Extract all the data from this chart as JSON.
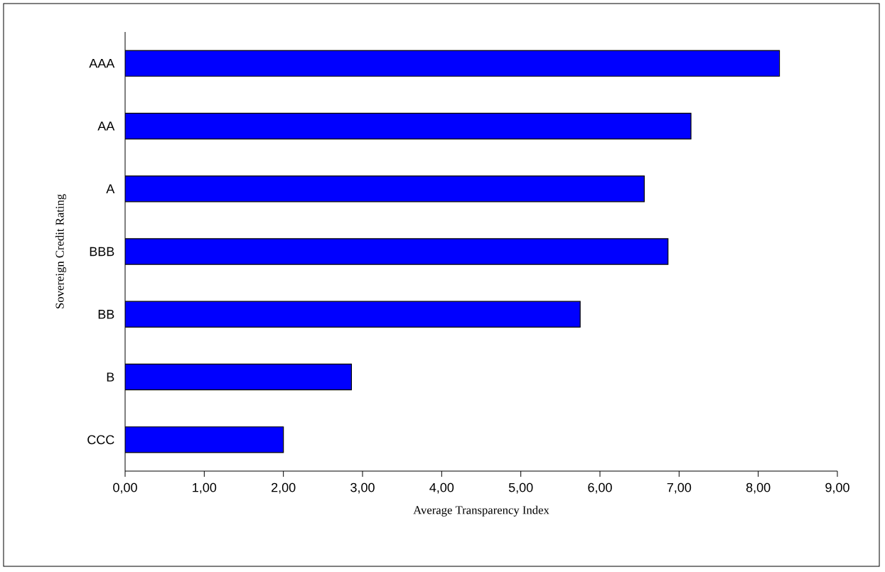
{
  "chart_data": {
    "type": "bar",
    "orientation": "horizontal",
    "xlabel": "Average Transparency Index",
    "ylabel": "Sovereign Credit Rating",
    "categories": [
      "AAA",
      "AA",
      "A",
      "BBB",
      "BB",
      "B",
      "CCC"
    ],
    "values": [
      8.27,
      7.15,
      6.56,
      6.86,
      5.75,
      2.86,
      2.0
    ],
    "color": "#0000ff",
    "xlim": [
      0,
      9
    ],
    "xticks": [
      {
        "value": 0,
        "label": "0,00"
      },
      {
        "value": 1,
        "label": "1,00"
      },
      {
        "value": 2,
        "label": "2,00"
      },
      {
        "value": 3,
        "label": "3,00"
      },
      {
        "value": 4,
        "label": "4,00"
      },
      {
        "value": 5,
        "label": "5,00"
      },
      {
        "value": 6,
        "label": "6,00"
      },
      {
        "value": 7,
        "label": "7,00"
      },
      {
        "value": 8,
        "label": "8,00"
      },
      {
        "value": 9,
        "label": "9,00"
      }
    ],
    "grid": false
  }
}
